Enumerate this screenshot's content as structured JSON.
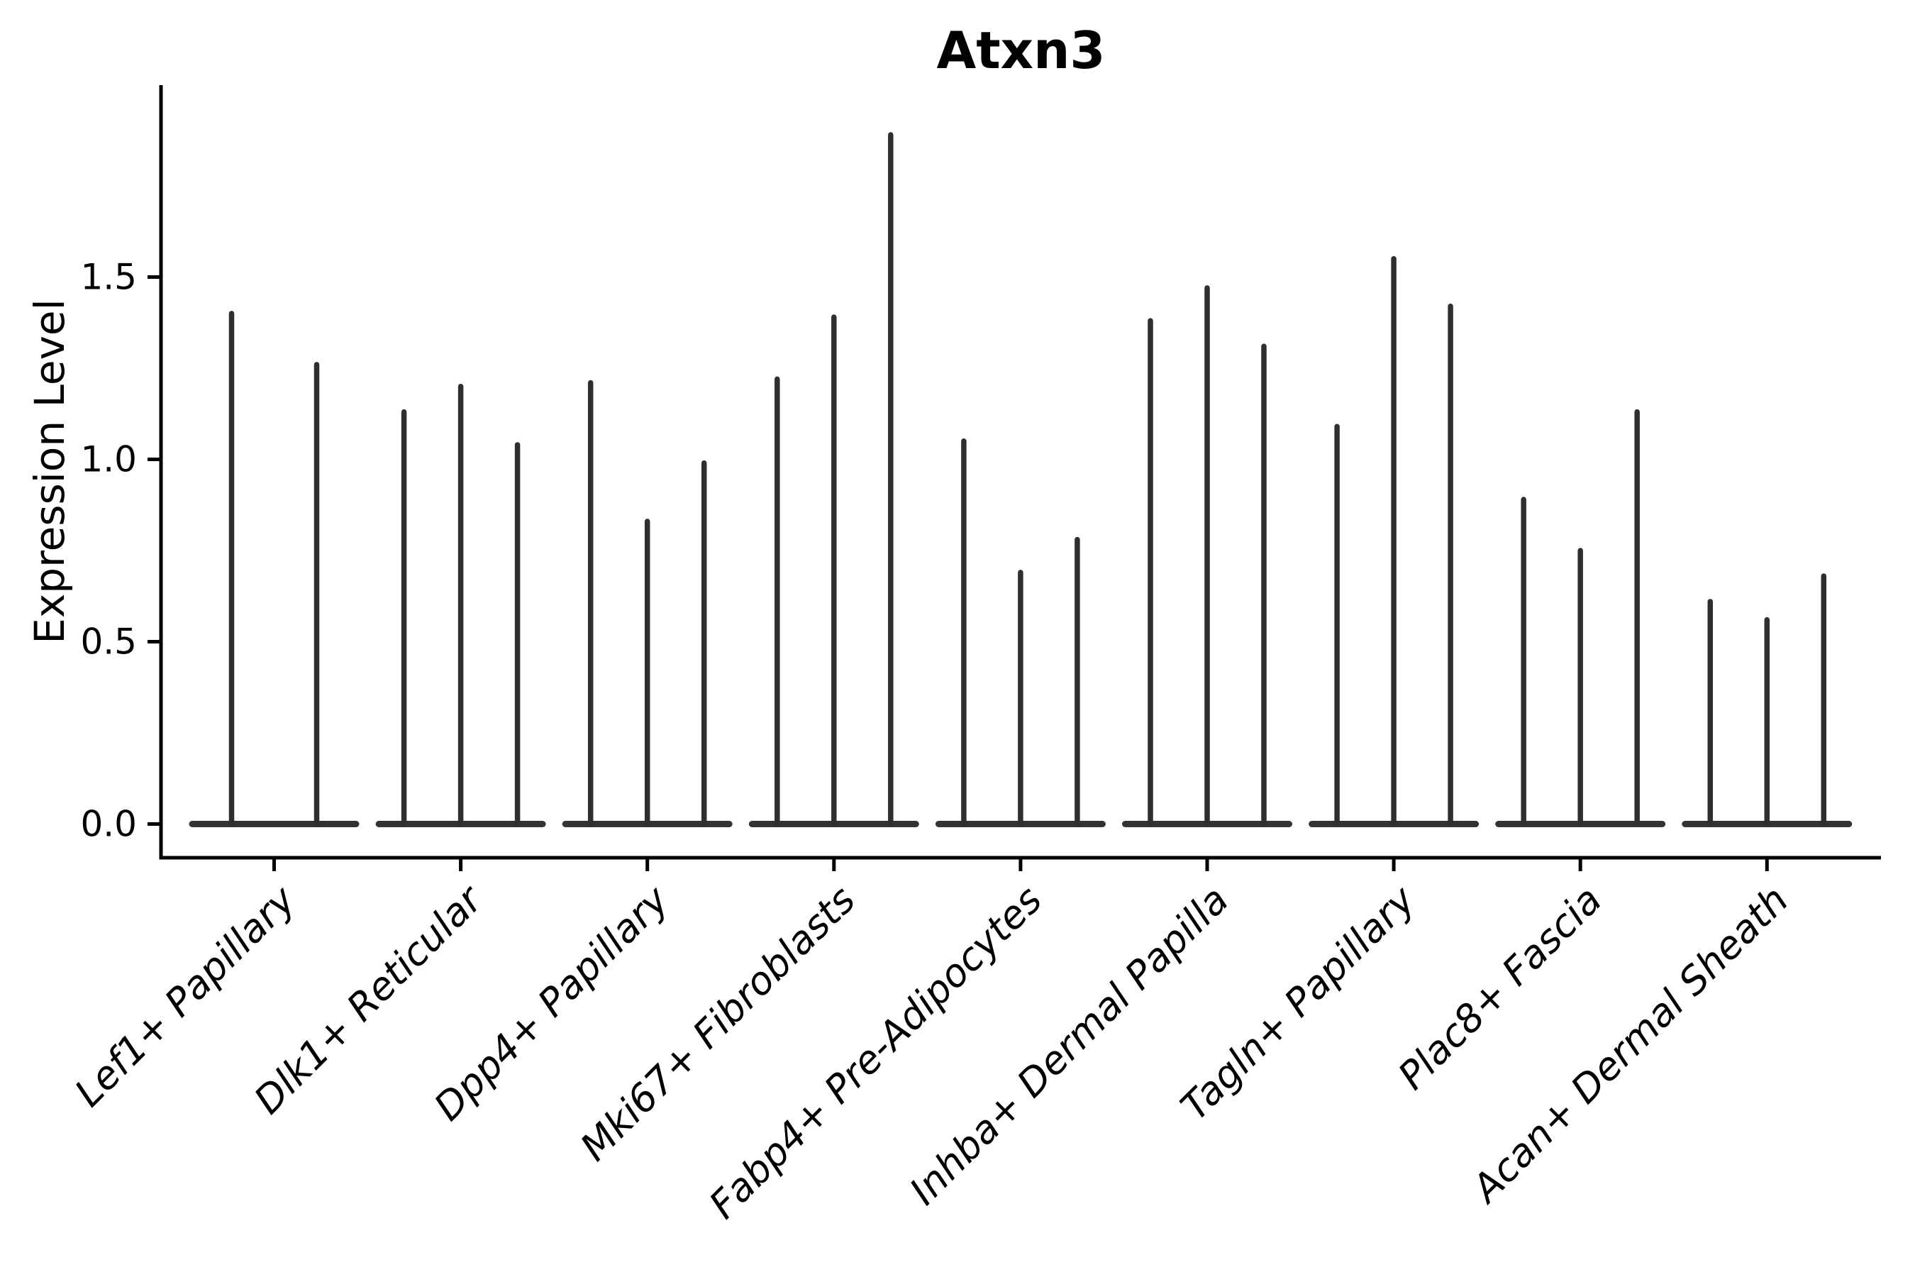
{
  "title": "Atxn3",
  "chart_data": {
    "type": "violin",
    "title": "Atxn3",
    "xlabel": "",
    "ylabel": "Expression Level",
    "ylim": [
      -0.09,
      2.03
    ],
    "yticks": [
      0.0,
      0.5,
      1.0,
      1.5
    ],
    "ytick_labels": [
      "0.0",
      "0.5",
      "1.0",
      "1.5"
    ],
    "grid": false,
    "legend": "none",
    "categories": [
      "Lef1+ Papillary",
      "Dlk1+ Reticular",
      "Dpp4+ Papillary",
      "Mki67+ Fibroblasts",
      "Fabp4+ Pre-Adipocytes",
      "Inhba+ Dermal Papilla",
      "Tagln+ Papillary",
      "Plac8+ Fascia",
      "Acan+ Dermal Sheath"
    ],
    "groups": [
      {
        "label": "Lef1+ Papillary",
        "violin_max_expression": [
          1.4,
          1.26
        ]
      },
      {
        "label": "Dlk1+ Reticular",
        "violin_max_expression": [
          1.13,
          1.2,
          1.04
        ]
      },
      {
        "label": "Dpp4+ Papillary",
        "violin_max_expression": [
          1.21,
          0.83,
          0.99
        ]
      },
      {
        "label": "Mki67+ Fibroblasts",
        "violin_max_expression": [
          1.22,
          1.39,
          1.89
        ]
      },
      {
        "label": "Fabp4+ Pre-Adipocytes",
        "violin_max_expression": [
          1.05,
          0.69,
          0.78
        ]
      },
      {
        "label": "Inhba+ Dermal Papilla",
        "violin_max_expression": [
          1.38,
          1.47,
          1.31
        ]
      },
      {
        "label": "Tagln+ Papillary",
        "violin_max_expression": [
          1.09,
          1.55,
          1.42
        ]
      },
      {
        "label": "Plac8+ Fascia",
        "violin_max_expression": [
          0.89,
          0.75,
          1.13
        ]
      },
      {
        "label": "Acan+ Dermal Sheath",
        "violin_max_expression": [
          0.61,
          0.56,
          0.68
        ]
      }
    ]
  },
  "colors": {
    "background": "#ffffff",
    "axis": "#000000",
    "text": "#000000",
    "violin_stroke": "#2f2f2f",
    "violin_base": "#333333"
  }
}
